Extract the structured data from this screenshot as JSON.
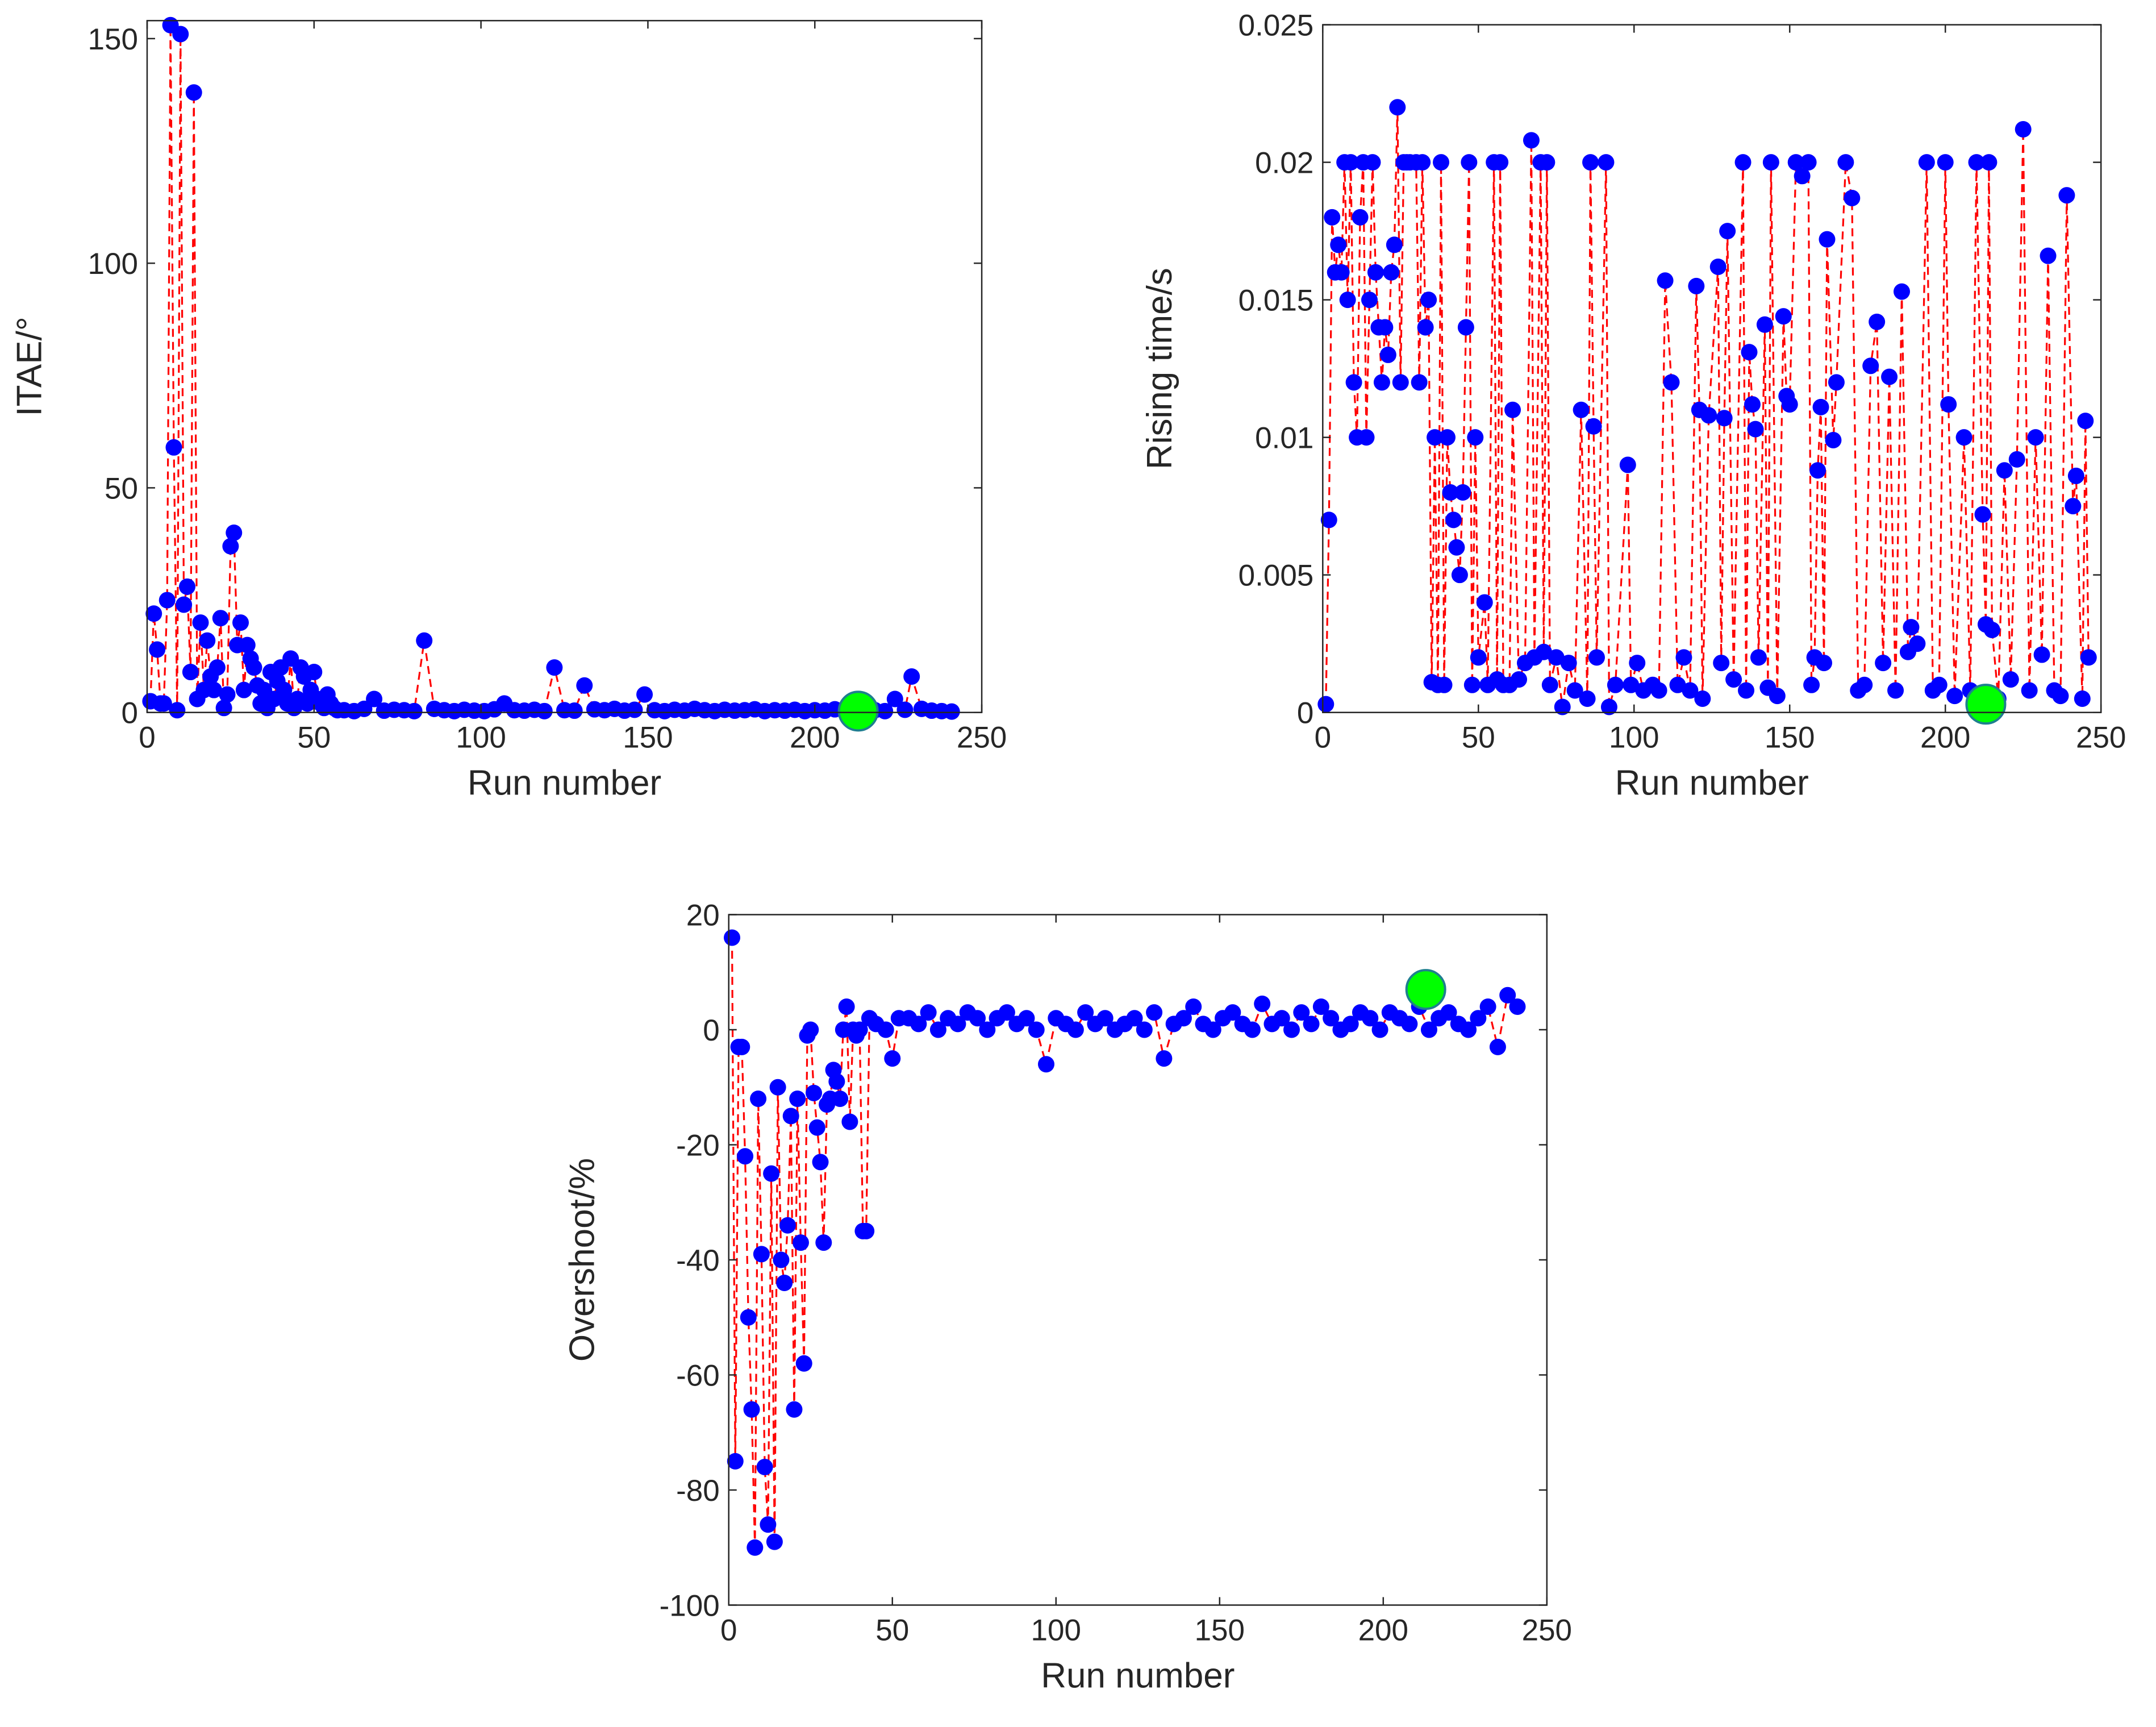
{
  "chart_data": [
    {
      "type": "scatter",
      "xlabel": "Run number",
      "ylabel": "ITAE/°",
      "xlim": [
        0,
        250
      ],
      "xticks": [
        0,
        50,
        100,
        150,
        200,
        250
      ],
      "ylim": [
        0,
        154
      ],
      "yticks": [
        0,
        50,
        100,
        150
      ],
      "series": [
        {
          "color": "#0000ff",
          "line_color": "#ff0000",
          "x": [
            1,
            2,
            3,
            4,
            5,
            6,
            7,
            8,
            9,
            10,
            11,
            12,
            13,
            14,
            15,
            16,
            17,
            18,
            19,
            20,
            21,
            22,
            23,
            24,
            25,
            26,
            27,
            28,
            29,
            30,
            31,
            32,
            33,
            34,
            35,
            36,
            37,
            38,
            39,
            40,
            41,
            42,
            43,
            44,
            45,
            46,
            47,
            48,
            49,
            50,
            51,
            52,
            53,
            54,
            55,
            56,
            57,
            59,
            62,
            65,
            68,
            71,
            74,
            77,
            80,
            83,
            86,
            89,
            92,
            95,
            98,
            101,
            104,
            107,
            110,
            113,
            116,
            119,
            122,
            125,
            128,
            131,
            134,
            137,
            140,
            143,
            146,
            149,
            152,
            155,
            158,
            161,
            164,
            167,
            170,
            173,
            176,
            179,
            182,
            185,
            188,
            191,
            194,
            197,
            200,
            203,
            206,
            209,
            212,
            215,
            218,
            221,
            224,
            227,
            229,
            232,
            235,
            238,
            241
          ],
          "values": [
            2.5,
            22,
            14,
            2,
            2,
            25,
            153,
            59,
            0.5,
            151,
            24,
            28,
            9,
            138,
            3,
            20,
            5,
            16,
            8,
            5,
            10,
            21,
            1,
            4,
            37,
            40,
            15,
            20,
            5,
            15,
            12,
            10,
            6,
            2,
            5,
            1,
            9,
            3,
            7,
            10,
            5,
            2,
            12,
            1,
            3,
            10,
            8,
            2,
            5,
            9,
            3,
            2,
            1,
            4,
            2,
            1,
            0.5,
            0.5,
            0.3,
            0.8,
            3,
            0.4,
            0.6,
            0.5,
            0.3,
            16,
            0.8,
            0.5,
            0.3,
            0.6,
            0.4,
            0.3,
            0.7,
            2,
            0.5,
            0.4,
            0.6,
            0.3,
            10,
            0.5,
            0.4,
            6,
            0.7,
            0.5,
            0.8,
            0.4,
            0.6,
            4,
            0.5,
            0.3,
            0.6,
            0.4,
            0.8,
            0.5,
            0.3,
            0.6,
            0.4,
            0.5,
            0.7,
            0.3,
            0.5,
            0.4,
            0.6,
            0.3,
            0.5,
            0.4,
            0.7,
            0.5,
            0.4,
            0.6,
            0.5,
            0.3,
            3,
            0.6,
            8,
            0.8,
            0.4,
            0.3,
            0.2
          ]
        },
        {
          "color": "#00ff00",
          "edge_color": "#1f7f8f",
          "x": [
            213
          ],
          "values": [
            0.3
          ]
        }
      ]
    },
    {
      "type": "scatter",
      "xlabel": "Run number",
      "ylabel": "Rising time/s",
      "xlim": [
        0,
        250
      ],
      "xticks": [
        0,
        50,
        100,
        150,
        200,
        250
      ],
      "ylim": [
        0,
        0.025
      ],
      "yticks": [
        0,
        0.005,
        0.01,
        0.015,
        0.02,
        0.025
      ],
      "series": [
        {
          "color": "#0000ff",
          "line_color": "#ff0000",
          "x": [
            1,
            2,
            3,
            4,
            5,
            6,
            7,
            8,
            9,
            10,
            11,
            12,
            13,
            14,
            15,
            16,
            17,
            18,
            19,
            20,
            21,
            22,
            23,
            24,
            25,
            26,
            27,
            28,
            30,
            31,
            32,
            33,
            34,
            35,
            36,
            37,
            38,
            39,
            40,
            41,
            42,
            43,
            44,
            45,
            46,
            47,
            48,
            49,
            50,
            52,
            53,
            55,
            56,
            57,
            58,
            60,
            61,
            63,
            65,
            67,
            68,
            70,
            71,
            72,
            73,
            75,
            77,
            79,
            81,
            83,
            85,
            86,
            87,
            88,
            91,
            92,
            94,
            98,
            99,
            101,
            103,
            106,
            108,
            110,
            112,
            114,
            116,
            118,
            120,
            121,
            122,
            124,
            127,
            128,
            129,
            130,
            132,
            135,
            136,
            137,
            138,
            139,
            140,
            142,
            143,
            144,
            146,
            148,
            149,
            150,
            152,
            154,
            156,
            157,
            158,
            159,
            160,
            161,
            162,
            164,
            165,
            168,
            170,
            172,
            174,
            176,
            178,
            180,
            182,
            184,
            186,
            188,
            189,
            191,
            194,
            196,
            198,
            200,
            201,
            203,
            206,
            208,
            210,
            212,
            213,
            214,
            215,
            217,
            219,
            221,
            223,
            225,
            227,
            229,
            231,
            233,
            235,
            237,
            239,
            241,
            242,
            244,
            245,
            246
          ],
          "values": [
            0.0003,
            0.007,
            0.018,
            0.016,
            0.017,
            0.016,
            0.02,
            0.015,
            0.02,
            0.012,
            0.01,
            0.018,
            0.02,
            0.01,
            0.015,
            0.02,
            0.016,
            0.014,
            0.012,
            0.014,
            0.013,
            0.016,
            0.017,
            0.022,
            0.012,
            0.02,
            0.02,
            0.02,
            0.02,
            0.012,
            0.02,
            0.014,
            0.015,
            0.0011,
            0.01,
            0.001,
            0.02,
            0.001,
            0.01,
            0.008,
            0.007,
            0.006,
            0.005,
            0.008,
            0.014,
            0.02,
            0.001,
            0.01,
            0.002,
            0.004,
            0.001,
            0.02,
            0.0012,
            0.02,
            0.001,
            0.001,
            0.011,
            0.0012,
            0.0018,
            0.0208,
            0.002,
            0.02,
            0.0022,
            0.02,
            0.001,
            0.002,
            0.0002,
            0.0018,
            0.0008,
            0.011,
            0.0005,
            0.02,
            0.0104,
            0.002,
            0.02,
            0.0002,
            0.001,
            0.009,
            0.001,
            0.0018,
            0.0008,
            0.001,
            0.0008,
            0.0157,
            0.012,
            0.001,
            0.002,
            0.0008,
            0.0155,
            0.011,
            0.0005,
            0.0108,
            0.0162,
            0.0018,
            0.0107,
            0.0175,
            0.0012,
            0.02,
            0.0008,
            0.0131,
            0.0112,
            0.0103,
            0.002,
            0.0141,
            0.0009,
            0.02,
            0.0006,
            0.0144,
            0.0115,
            0.0112,
            0.02,
            0.0195,
            0.02,
            0.001,
            0.002,
            0.0088,
            0.0111,
            0.0018,
            0.0172,
            0.0099,
            0.012,
            0.02,
            0.0187,
            0.0008,
            0.001,
            0.0126,
            0.0142,
            0.0018,
            0.0122,
            0.0008,
            0.0153,
            0.0022,
            0.0031,
            0.0025,
            0.02,
            0.0008,
            0.001,
            0.02,
            0.0112,
            0.0006,
            0.01,
            0.0008,
            0.02,
            0.0072,
            0.0032,
            0.02,
            0.003,
            0.0005,
            0.0088,
            0.0012,
            0.0092,
            0.0212,
            0.0008,
            0.01,
            0.0021,
            0.0166,
            0.0008,
            0.0006,
            0.0188,
            0.0075,
            0.0086,
            0.0005,
            0.0106,
            0.002
          ]
        },
        {
          "color": "#00ff00",
          "edge_color": "#1f7f8f",
          "x": [
            213
          ],
          "values": [
            0.0003
          ]
        }
      ]
    },
    {
      "type": "scatter",
      "xlabel": "Run number",
      "ylabel": "Overshoot/%",
      "xlim": [
        0,
        250
      ],
      "xticks": [
        0,
        50,
        100,
        150,
        200,
        250
      ],
      "ylim": [
        -100,
        20
      ],
      "yticks": [
        -100,
        -80,
        -60,
        -40,
        -20,
        0,
        20
      ],
      "series": [
        {
          "color": "#0000ff",
          "line_color": "#ff0000",
          "x": [
            1,
            2,
            3,
            4,
            5,
            6,
            7,
            8,
            9,
            10,
            11,
            12,
            13,
            14,
            15,
            16,
            17,
            18,
            19,
            20,
            21,
            22,
            23,
            24,
            25,
            26,
            27,
            28,
            29,
            30,
            31,
            32,
            33,
            34,
            35,
            36,
            37,
            38,
            39,
            40,
            41,
            42,
            43,
            45,
            48,
            50,
            52,
            55,
            58,
            61,
            64,
            67,
            70,
            73,
            76,
            79,
            82,
            85,
            88,
            91,
            94,
            97,
            100,
            103,
            106,
            109,
            112,
            115,
            118,
            121,
            124,
            127,
            130,
            133,
            136,
            139,
            142,
            145,
            148,
            151,
            154,
            157,
            160,
            163,
            166,
            169,
            172,
            175,
            178,
            181,
            184,
            187,
            190,
            193,
            196,
            199,
            202,
            205,
            208,
            211,
            214,
            217,
            220,
            223,
            226,
            229,
            232,
            235,
            238,
            241
          ],
          "values": [
            16,
            -75,
            -3,
            -3,
            -22,
            -50,
            -66,
            -90,
            -12,
            -39,
            -76,
            -86,
            -25,
            -89,
            -10,
            -40,
            -44,
            -34,
            -15,
            -66,
            -12,
            -37,
            -58,
            -1,
            0,
            -11,
            -17,
            -23,
            -37,
            -13,
            -12,
            -7,
            -9,
            -12,
            0,
            4,
            -16,
            0,
            -1,
            0,
            -35,
            -35,
            2,
            1,
            0,
            -5,
            2,
            2,
            1,
            3,
            0,
            2,
            1,
            3,
            2,
            0,
            2,
            3,
            1,
            2,
            0,
            -6,
            2,
            1,
            0,
            3,
            1,
            2,
            0,
            1,
            2,
            0,
            3,
            -5,
            1,
            2,
            4,
            1,
            0,
            2,
            3,
            1,
            0,
            4.5,
            1,
            2,
            0,
            3,
            1,
            4,
            2,
            0,
            1,
            3,
            2,
            0,
            3,
            2,
            1,
            4,
            0,
            2,
            3,
            1,
            0,
            2,
            4,
            -3,
            6,
            4
          ]
        },
        {
          "color": "#00ff00",
          "edge_color": "#1f7f8f",
          "x": [
            213
          ],
          "values": [
            7
          ]
        }
      ]
    }
  ]
}
